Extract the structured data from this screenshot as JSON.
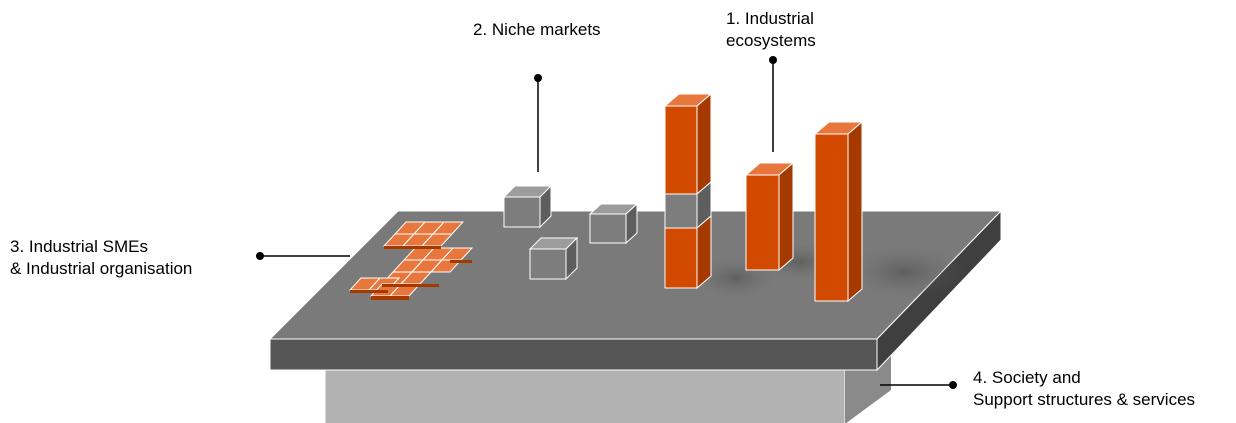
{
  "labels": {
    "industrial_ecosystems": {
      "line1": "1. Industrial",
      "line2": "ecosystems"
    },
    "niche_markets": {
      "line1": "2. Niche markets"
    },
    "industrial_smes": {
      "line1": "3. Industrial SMEs",
      "line2": "& Industrial organisation"
    },
    "society": {
      "line1": "4. Society and",
      "line2": "Support structures & services"
    }
  },
  "colors": {
    "orange_front": "#d24a00",
    "orange_top": "#e8773d",
    "orange_side": "#a53a00",
    "platform_top": "#7a7a7a",
    "platform_front": "#565656",
    "platform_side": "#3f3f3f",
    "base_front": "#b2b2b2",
    "base_side": "#8a8a8a",
    "grey_cube": "#7d7d7d"
  }
}
